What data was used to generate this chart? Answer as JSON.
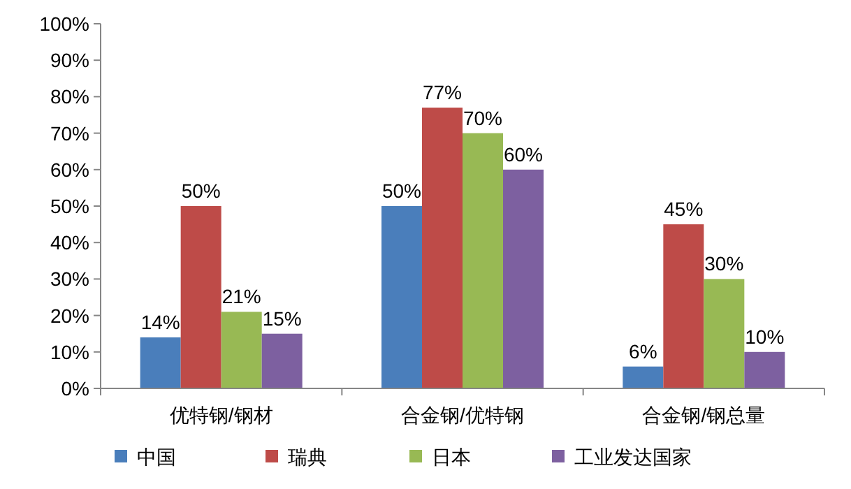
{
  "chart_data": {
    "type": "bar",
    "categories": [
      "优特钢/钢材",
      "合金钢/优特钢",
      "合金钢/钢总量"
    ],
    "series": [
      {
        "name": "中国",
        "color": "#4a7ebb",
        "values": [
          14,
          50,
          6
        ],
        "value_labels": [
          "14%",
          "50%",
          "6%"
        ]
      },
      {
        "name": "瑞典",
        "color": "#be4b48",
        "values": [
          50,
          77,
          45
        ],
        "value_labels": [
          "50%",
          "77%",
          "45%"
        ]
      },
      {
        "name": "日本",
        "color": "#98b954",
        "values": [
          21,
          70,
          30
        ],
        "value_labels": [
          "21%",
          "70%",
          "30%"
        ]
      },
      {
        "name": "工业发达国家",
        "color": "#7d60a0",
        "values": [
          15,
          60,
          10
        ],
        "value_labels": [
          "15%",
          "60%",
          "10%"
        ]
      }
    ],
    "ylim": [
      0,
      100
    ],
    "yticks": [
      {
        "value": 0,
        "label": "0%"
      },
      {
        "value": 10,
        "label": "10%"
      },
      {
        "value": 20,
        "label": "20%"
      },
      {
        "value": 30,
        "label": "30%"
      },
      {
        "value": 40,
        "label": "40%"
      },
      {
        "value": 50,
        "label": "50%"
      },
      {
        "value": 60,
        "label": "60%"
      },
      {
        "value": 70,
        "label": "70%"
      },
      {
        "value": 80,
        "label": "80%"
      },
      {
        "value": 90,
        "label": "90%"
      },
      {
        "value": 100,
        "label": "100%"
      }
    ],
    "legend": "bottom",
    "grid": false
  }
}
